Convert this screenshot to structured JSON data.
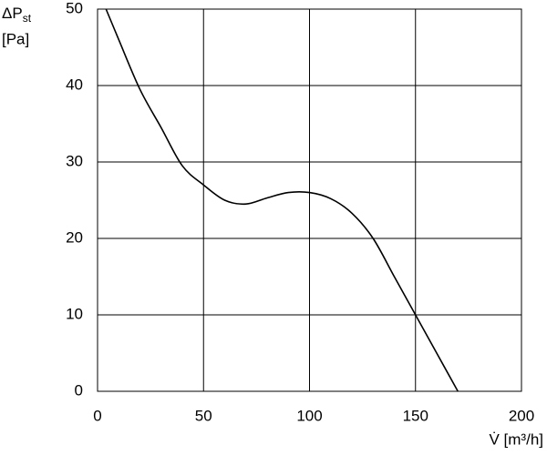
{
  "chart_data": {
    "type": "line",
    "ylabel": {
      "main": "ΔP",
      "sub": "st",
      "unit": "[Pa]"
    },
    "xlabel": "V̇ [m³/h]",
    "x": [
      4,
      10,
      20,
      30,
      40,
      50,
      60,
      70,
      80,
      90,
      100,
      110,
      120,
      130,
      140,
      150,
      160,
      170
    ],
    "series": [
      {
        "color": "#000000",
        "values": [
          50,
          46,
          39.5,
          34.5,
          29.5,
          27,
          25,
          24.5,
          25.3,
          26,
          26,
          25.2,
          23.3,
          20,
          15,
          10,
          5,
          0
        ]
      }
    ],
    "xlim": [
      0,
      200
    ],
    "xticks": [
      0,
      50,
      100,
      150,
      200
    ],
    "ylim": [
      0,
      50
    ],
    "yticks": [
      0,
      10,
      20,
      30,
      40,
      50
    ],
    "grid": true
  }
}
